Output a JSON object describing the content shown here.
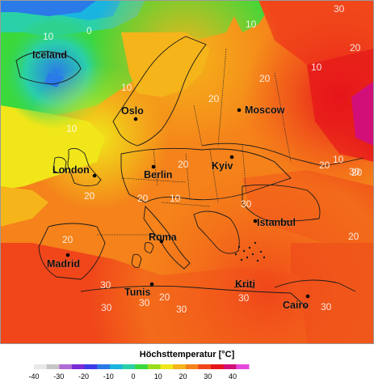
{
  "legend": {
    "title": "Höchsttemperatur [°C]",
    "ticks": [
      "-40",
      "-30",
      "-20",
      "-10",
      "0",
      "10",
      "20",
      "30",
      "40"
    ],
    "palette": [
      "#e8e8e8",
      "#c6c6c6",
      "#b06ad6",
      "#7a2ad8",
      "#3a3ae8",
      "#2a7ae8",
      "#1ab4e0",
      "#2ad0a8",
      "#3ad83a",
      "#9ade1a",
      "#f0e61a",
      "#f5b41a",
      "#f5821a",
      "#f0461a",
      "#e6141a",
      "#d20f78",
      "#e646dc"
    ]
  },
  "cities": [
    {
      "label": "Iceland",
      "marker": false
    },
    {
      "label": "Oslo",
      "marker": true
    },
    {
      "label": "Moscow",
      "marker": true
    },
    {
      "label": "London",
      "marker": true
    },
    {
      "label": "Berlin",
      "marker": true
    },
    {
      "label": "Kyiv",
      "marker": true
    },
    {
      "label": "Istanbul",
      "marker": true
    },
    {
      "label": "Roma",
      "marker": true
    },
    {
      "label": "Madrid",
      "marker": true
    },
    {
      "label": "Tunis",
      "marker": true
    },
    {
      "label": "Kriti",
      "marker": false
    },
    {
      "label": "Cairo",
      "marker": true
    }
  ],
  "isotherm_labels": [
    "0",
    "10",
    "10",
    "30",
    "10",
    "10",
    "20",
    "20",
    "10",
    "20",
    "20",
    "10",
    "10",
    "20",
    "30",
    "20",
    "20",
    "20",
    "20",
    "30",
    "20",
    "20",
    "30",
    "30",
    "30",
    "30",
    "30",
    "30"
  ],
  "colors": {
    "cold": "#2a7ae8",
    "mild": "#3ad83a",
    "warm": "#f5b41a",
    "hot": "#f0461a",
    "border": "#2b2b2b",
    "coast": "#1a1a1a"
  }
}
